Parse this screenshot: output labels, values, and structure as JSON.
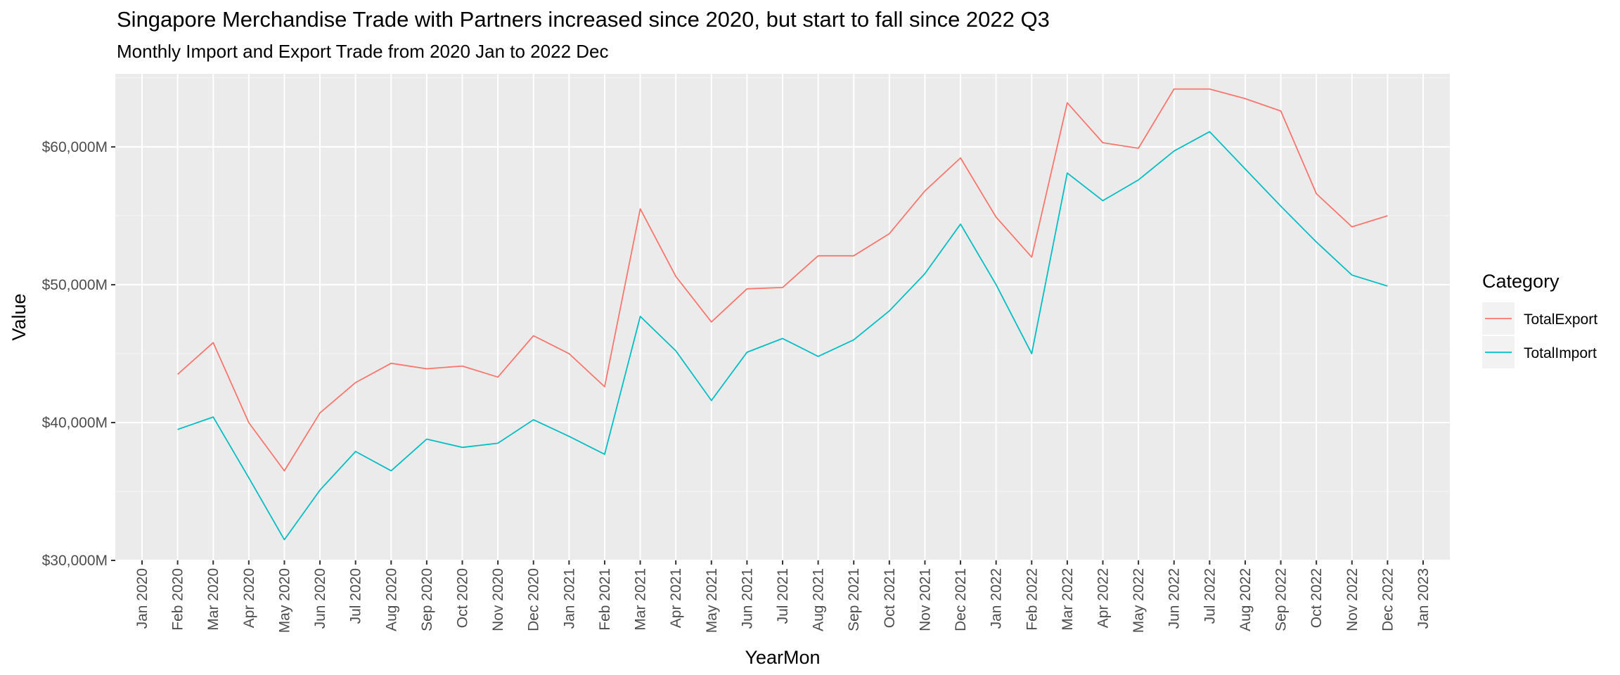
{
  "title": "Singapore Merchandise Trade with Partners increased since 2020, but start to fall since 2022 Q3",
  "subtitle": "Monthly Import and Export Trade from 2020 Jan to 2022 Dec",
  "chart_data": {
    "type": "line",
    "xlabel": "YearMon",
    "ylabel": "Value",
    "x_tick_labels": [
      "Jan 2020",
      "Feb 2020",
      "Mar 2020",
      "Apr 2020",
      "May 2020",
      "Jun 2020",
      "Jul 2020",
      "Aug 2020",
      "Sep 2020",
      "Oct 2020",
      "Nov 2020",
      "Dec 2020",
      "Jan 2021",
      "Feb 2021",
      "Mar 2021",
      "Apr 2021",
      "May 2021",
      "Jun 2021",
      "Jul 2021",
      "Aug 2021",
      "Sep 2021",
      "Oct 2021",
      "Nov 2021",
      "Dec 2021",
      "Jan 2022",
      "Feb 2022",
      "Mar 2022",
      "Apr 2022",
      "May 2022",
      "Jun 2022",
      "Jul 2022",
      "Aug 2022",
      "Sep 2022",
      "Oct 2022",
      "Nov 2022",
      "Dec 2022",
      "Jan 2023"
    ],
    "x": [
      "Feb 2020",
      "Mar 2020",
      "Apr 2020",
      "May 2020",
      "Jun 2020",
      "Jul 2020",
      "Aug 2020",
      "Sep 2020",
      "Oct 2020",
      "Nov 2020",
      "Dec 2020",
      "Jan 2021",
      "Feb 2021",
      "Mar 2021",
      "Apr 2021",
      "May 2021",
      "Jun 2021",
      "Jul 2021",
      "Aug 2021",
      "Sep 2021",
      "Oct 2021",
      "Nov 2021",
      "Dec 2021",
      "Jan 2022",
      "Feb 2022",
      "Mar 2022",
      "Apr 2022",
      "May 2022",
      "Jun 2022",
      "Jul 2022",
      "Aug 2022",
      "Sep 2022",
      "Oct 2022",
      "Nov 2022",
      "Dec 2022"
    ],
    "y_ticks": [
      30000,
      40000,
      50000,
      60000
    ],
    "y_tick_labels": [
      "$30,000M",
      "$40,000M",
      "$50,000M",
      "$60,000M"
    ],
    "ylim": [
      30000,
      65300
    ],
    "grid": true,
    "legend": {
      "title": "Category",
      "position": "right"
    },
    "series": [
      {
        "name": "TotalExport",
        "color": "#F8766D",
        "values": [
          43500,
          45800,
          40000,
          36500,
          40700,
          42900,
          44300,
          43900,
          44100,
          43300,
          46300,
          45000,
          42600,
          55500,
          50600,
          47300,
          49700,
          49800,
          52100,
          52100,
          53700,
          56800,
          59200,
          54900,
          52000,
          63200,
          60300,
          59900,
          64200,
          64200,
          63500,
          62600,
          56600,
          54200,
          55000
        ]
      },
      {
        "name": "TotalImport",
        "color": "#00BFC4",
        "values": [
          39500,
          40400,
          36000,
          31500,
          35100,
          37900,
          36500,
          38800,
          38200,
          38500,
          40200,
          39000,
          37700,
          47700,
          45200,
          41600,
          45100,
          46100,
          44800,
          46000,
          48100,
          50800,
          54400,
          50000,
          45000,
          58100,
          56100,
          57600,
          59700,
          61100,
          58400,
          55700,
          53100,
          50700,
          49900
        ]
      }
    ]
  }
}
